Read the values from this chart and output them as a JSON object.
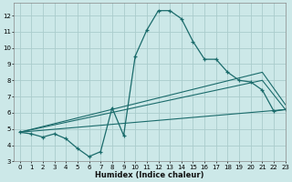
{
  "xlabel": "Humidex (Indice chaleur)",
  "bg_color": "#cce8e8",
  "grid_color": "#aacccc",
  "line_color": "#1a6b6b",
  "xlim": [
    -0.5,
    23
  ],
  "ylim": [
    3,
    12.8
  ],
  "yticks": [
    3,
    4,
    5,
    6,
    7,
    8,
    9,
    10,
    11,
    12
  ],
  "xticks": [
    0,
    1,
    2,
    3,
    4,
    5,
    6,
    7,
    8,
    9,
    10,
    11,
    12,
    13,
    14,
    15,
    16,
    17,
    18,
    19,
    20,
    21,
    22,
    23
  ],
  "main_x": [
    0,
    1,
    2,
    3,
    4,
    5,
    6,
    7,
    8,
    9,
    10,
    11,
    12,
    13,
    14,
    15,
    16,
    17,
    18,
    19,
    20,
    21,
    22,
    23
  ],
  "main_y": [
    4.8,
    4.7,
    4.5,
    4.7,
    4.4,
    3.8,
    3.3,
    3.6,
    6.3,
    4.6,
    9.5,
    11.1,
    12.3,
    12.3,
    11.8,
    10.4,
    9.3,
    9.3,
    8.5,
    8.0,
    7.9,
    7.4,
    6.1,
    6.2
  ],
  "line1_x": [
    0,
    23
  ],
  "line1_y": [
    4.8,
    6.2
  ],
  "line2_x": [
    0,
    21,
    23
  ],
  "line2_y": [
    4.8,
    8.0,
    6.2
  ],
  "line3_x": [
    0,
    21,
    23
  ],
  "line3_y": [
    4.8,
    8.5,
    6.5
  ]
}
